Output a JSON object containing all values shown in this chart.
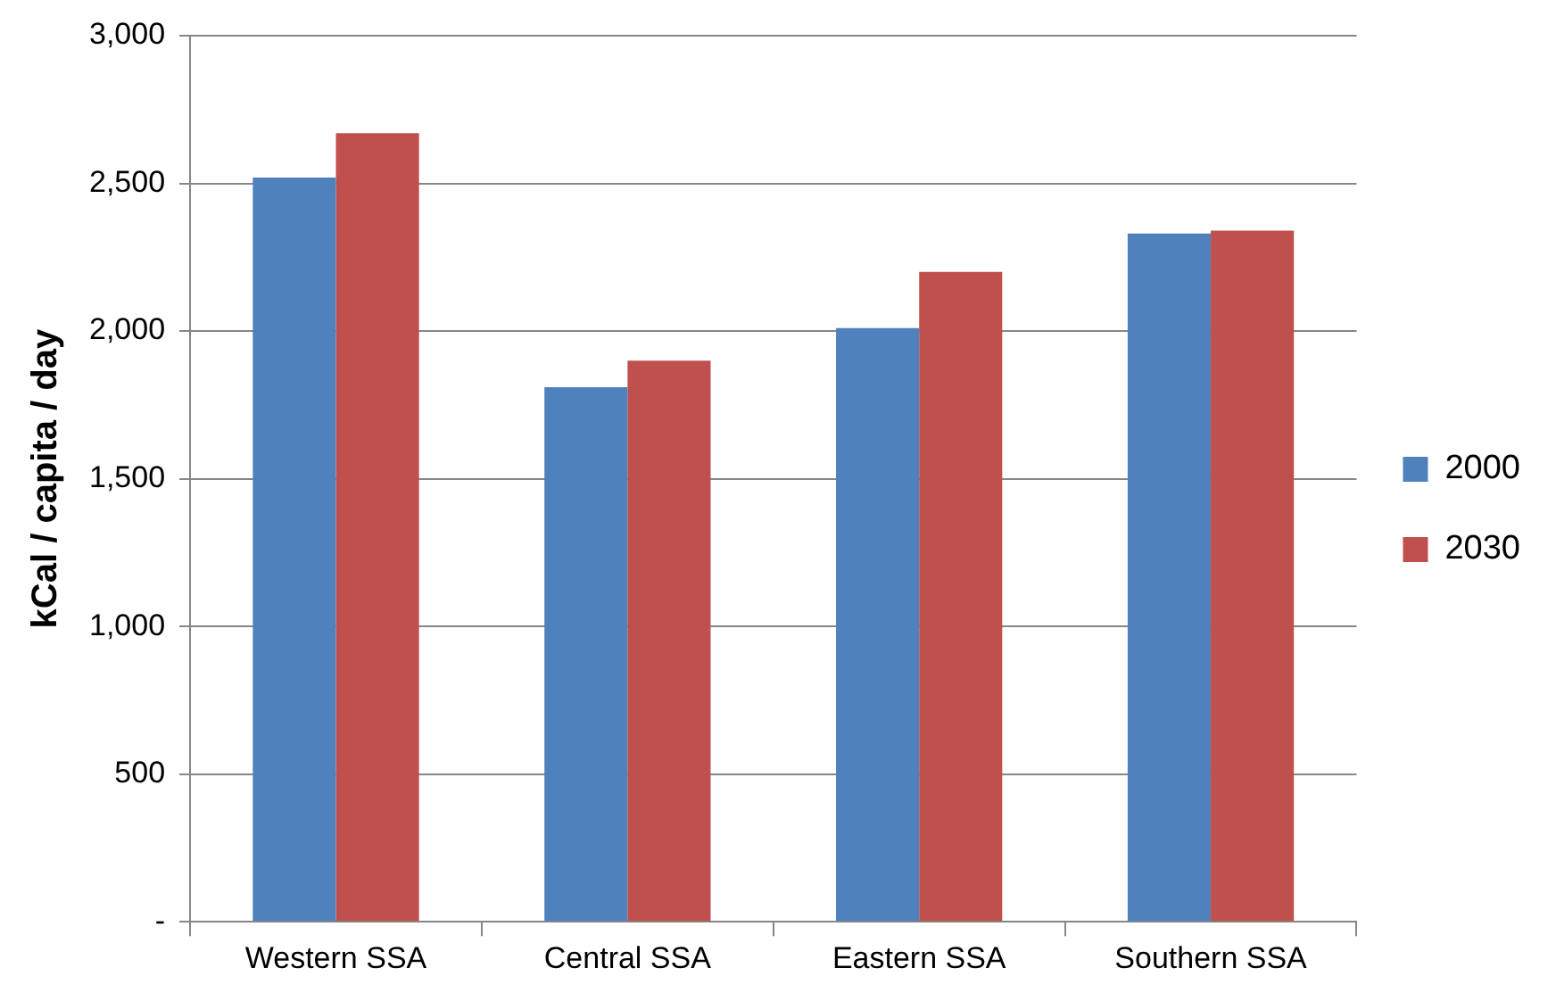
{
  "chart_data": {
    "type": "bar",
    "ylabel": "kCal / capita / day",
    "categories": [
      "Western SSA",
      "Central SSA",
      "Eastern SSA",
      "Southern SSA"
    ],
    "series": [
      {
        "name": "2000",
        "color": "#4f81bd",
        "values": [
          2520,
          1810,
          2010,
          2330
        ]
      },
      {
        "name": "2030",
        "color": "#c0504d",
        "values": [
          2670,
          1900,
          2200,
          2340
        ]
      }
    ],
    "ylim": [
      0,
      3000
    ],
    "yticks": [
      {
        "value": 0,
        "label": "-"
      },
      {
        "value": 500,
        "label": "500"
      },
      {
        "value": 1000,
        "label": "1,000"
      },
      {
        "value": 1500,
        "label": "1,500"
      },
      {
        "value": 2000,
        "label": "2,000"
      },
      {
        "value": 2500,
        "label": "2,500"
      },
      {
        "value": 3000,
        "label": "3,000"
      }
    ],
    "grid": "y",
    "legend": "right"
  }
}
